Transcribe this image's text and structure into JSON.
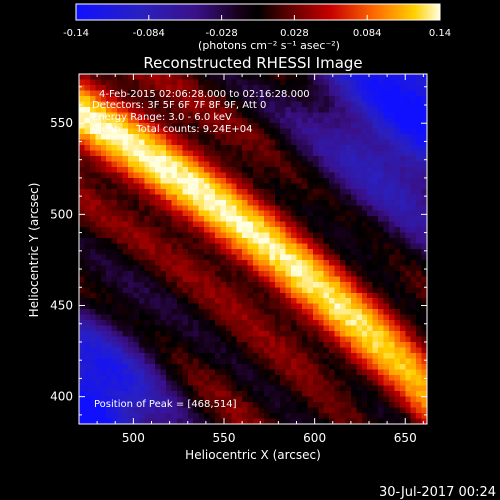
{
  "colorbar": {
    "tick_labels": [
      "-0.14",
      "-0.084",
      "-0.028",
      "0.028",
      "0.084",
      "0.14"
    ],
    "ticks": [
      -0.14,
      -0.084,
      -0.028,
      0.028,
      0.084,
      0.14
    ],
    "range": [
      -0.14,
      0.14
    ]
  },
  "chart_data": {
    "type": "heatmap",
    "title": "Reconstructed RHESSI Image",
    "xlabel": "Heliocentric X (arcsec)",
    "ylabel": "Heliocentric Y (arcsec)",
    "xlim": [
      470,
      662
    ],
    "ylim": [
      385,
      577
    ],
    "x_ticks": [
      500,
      550,
      600,
      650
    ],
    "y_ticks": [
      400,
      450,
      500,
      550
    ],
    "x_tick_labels": [
      "500",
      "550",
      "600",
      "650"
    ],
    "y_tick_labels": [
      "400",
      "450",
      "500",
      "550"
    ],
    "colorbar_unit": "(photons cm⁻² s⁻¹ asec⁻²)",
    "annotations": [
      "4-Feb-2015 02:06:28.000 to 02:16:28.000",
      "Detectors: 3F 5F 6F 7F 8F 9F, Att 0",
      "Energy Range: 3.0 - 6.0 keV",
      "Clean     Total counts: 9.24E+04"
    ],
    "peak_label": "Position of Peak = [468,514]",
    "peak": [
      468,
      514
    ],
    "grid": false
  },
  "footer": {
    "date": "30-Jul-2017 00:24"
  }
}
